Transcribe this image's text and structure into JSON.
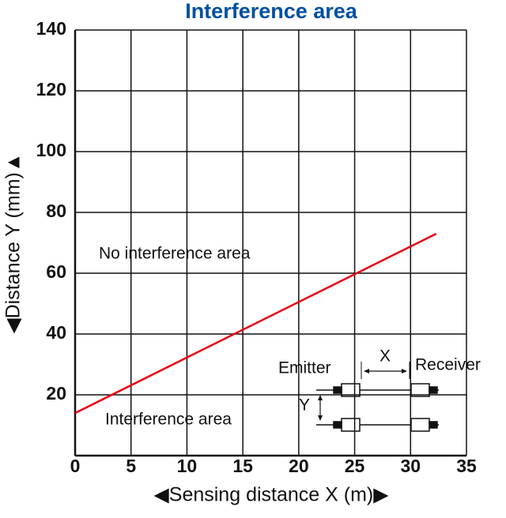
{
  "chart_data": {
    "type": "line",
    "title": "Interference area",
    "x_label": "◀Sensing distance X (m)▶",
    "y_label": "◀Distance Y (mm)▲",
    "x": [
      0,
      32.3
    ],
    "values": [
      14,
      73
    ],
    "color": "#e60012",
    "xlim": [
      0,
      35
    ],
    "ylim": [
      0,
      140
    ],
    "xticks": [
      0,
      5,
      10,
      15,
      20,
      25,
      30,
      35
    ],
    "yticks": [
      20,
      40,
      60,
      80,
      100,
      120,
      140
    ],
    "grid": true,
    "annotations": [
      "No interference area",
      "Interference area"
    ],
    "diagram_labels": {
      "emitter": "Emitter",
      "receiver": "Receiver",
      "x": "X",
      "y": "Y"
    }
  }
}
